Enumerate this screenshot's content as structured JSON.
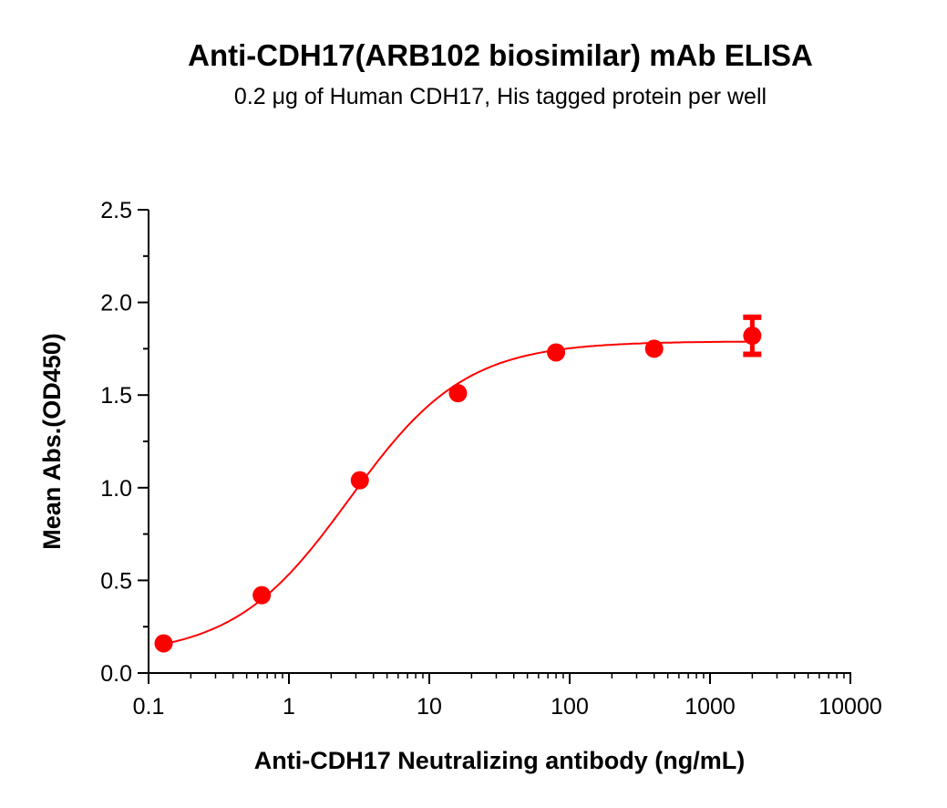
{
  "chart_data": {
    "type": "scatter",
    "title": "Anti-CDH17(ARB102 biosimilar) mAb ELISA",
    "subtitle": "0.2 μg of Human CDH17, His tagged protein per well",
    "xlabel": "Anti-CDH17 Neutralizing antibody (ng/mL)",
    "ylabel": "Mean Abs.(OD450)",
    "xscale": "log",
    "xlim": [
      0.1,
      10000
    ],
    "ylim": [
      0,
      2.5
    ],
    "xticks": [
      "0.1",
      "1",
      "10",
      "100",
      "1000",
      "10000"
    ],
    "yticks": [
      "0.0",
      "0.5",
      "1.0",
      "1.5",
      "2.0",
      "2.5"
    ],
    "grid": false,
    "color": "#ff0000",
    "fit_curve": "sigmoidal",
    "points": [
      {
        "x": 0.128,
        "y": 0.16,
        "err": 0.01
      },
      {
        "x": 0.64,
        "y": 0.42,
        "err": 0.01
      },
      {
        "x": 3.2,
        "y": 1.04,
        "err": 0.01
      },
      {
        "x": 16,
        "y": 1.51,
        "err": 0.01
      },
      {
        "x": 80,
        "y": 1.73,
        "err": 0.01
      },
      {
        "x": 400,
        "y": 1.75,
        "err": 0.01
      },
      {
        "x": 2000,
        "y": 1.82,
        "err": 0.1
      }
    ]
  }
}
